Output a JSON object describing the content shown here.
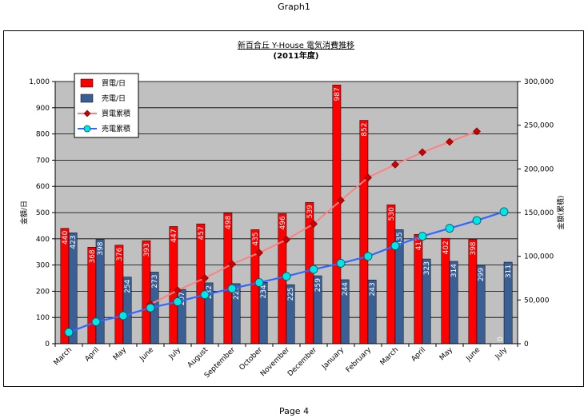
{
  "page": {
    "header": "Graph1",
    "footer": "Page 4"
  },
  "chart_data": {
    "type": "bar",
    "title": "新百合丘 Y-House 電気消費推移",
    "subtitle": "(2011年度)",
    "ylabel": "金額/日",
    "y2label": "金額(累積)",
    "ylim": [
      0,
      1000
    ],
    "y2lim": [
      0,
      300000
    ],
    "yticks": [
      "0",
      "100",
      "200",
      "300",
      "400",
      "500",
      "600",
      "700",
      "800",
      "900",
      "1,000"
    ],
    "y2ticks": [
      "0",
      "50,000",
      "100,000",
      "150,000",
      "200,000",
      "250,000",
      "300,000"
    ],
    "categories": [
      "March",
      "April",
      "May",
      "June",
      "July",
      "August",
      "September",
      "October",
      "November",
      "December",
      "January",
      "February",
      "March",
      "April",
      "May",
      "June",
      "July"
    ],
    "grid": true,
    "legend_position": "top-left",
    "series": [
      {
        "name": "買電/日",
        "kind": "bar",
        "color": "#ff0000",
        "values": [
          440,
          368,
          376,
          393,
          447,
          457,
          498,
          435,
          496,
          539,
          987,
          852,
          530,
          417,
          402,
          398,
          null
        ],
        "labels": [
          "440",
          "368",
          "376",
          "393",
          "447",
          "457",
          "498",
          "435",
          "496",
          "539",
          "987",
          "852",
          "530",
          "417",
          "402",
          "398",
          ""
        ]
      },
      {
        "name": "売電/日",
        "kind": "bar",
        "color": "#3a5f95",
        "values": [
          423,
          398,
          254,
          273,
          207,
          232,
          229,
          234,
          225,
          259,
          244,
          243,
          435,
          323,
          314,
          299,
          311
        ],
        "labels": [
          "423",
          "398",
          "254",
          "273",
          "207",
          "232",
          "229",
          "234",
          "225",
          "259",
          "244",
          "243",
          "435",
          "323",
          "314",
          "299",
          "311"
        ]
      },
      {
        "name": "買電累積",
        "kind": "line",
        "axis": "right",
        "color": "#ff8080",
        "marker_color": "#cc0000",
        "values": [
          null,
          null,
          null,
          45000,
          61000,
          75000,
          91000,
          104000,
          119000,
          137000,
          164000,
          190000,
          205000,
          219000,
          231000,
          243000,
          null
        ]
      },
      {
        "name": "売電累積",
        "kind": "line",
        "axis": "right",
        "color": "#3366ff",
        "marker_color": "#00e5e5",
        "values": [
          13000,
          25000,
          32000,
          41000,
          48000,
          56000,
          63000,
          70000,
          77000,
          85000,
          92000,
          100000,
          112000,
          123000,
          132000,
          141000,
          151000
        ]
      }
    ],
    "zero_label": "0"
  }
}
